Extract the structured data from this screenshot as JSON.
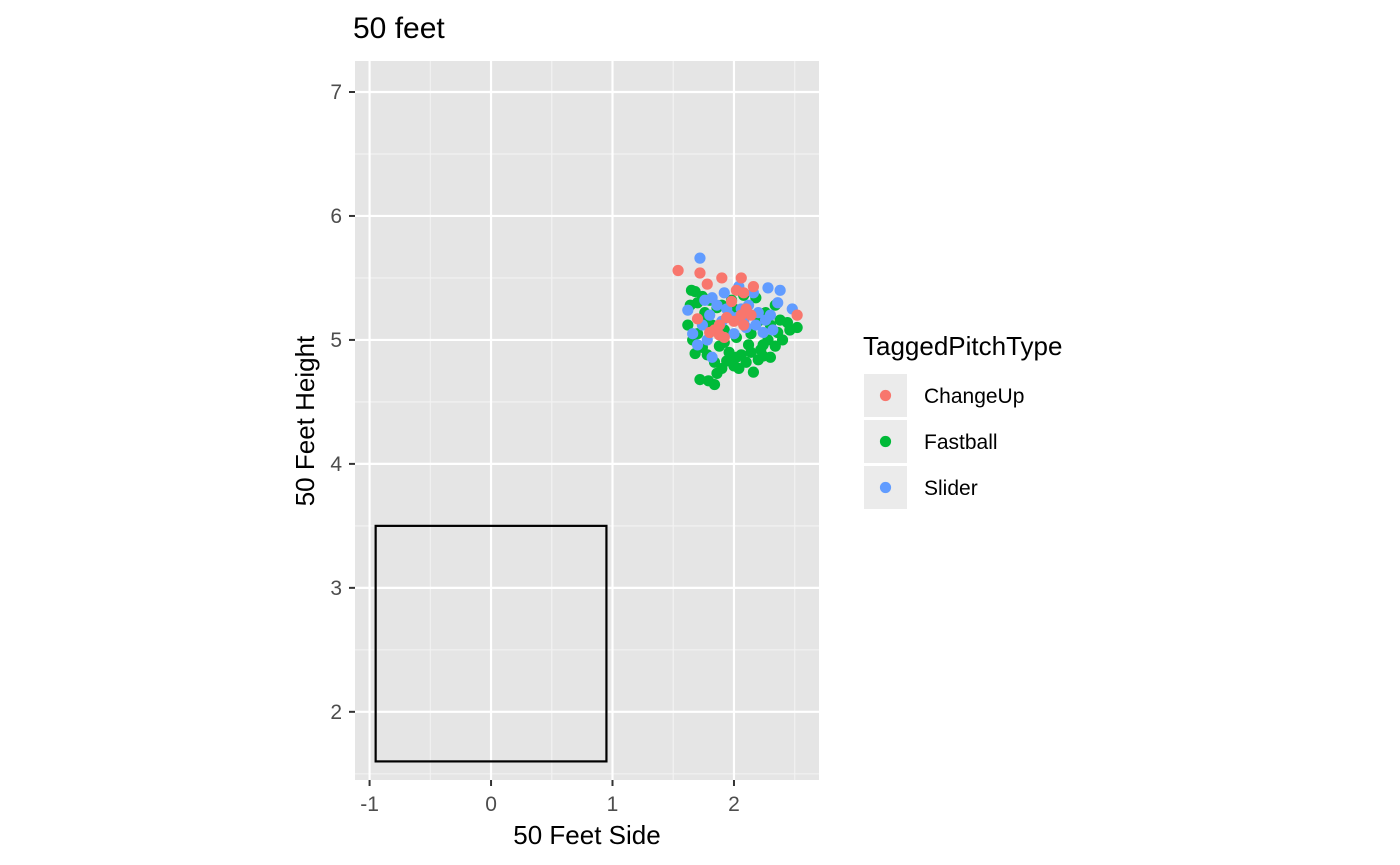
{
  "chart_data": {
    "type": "scatter",
    "title": "50 feet",
    "xlabel": "50 Feet Side",
    "ylabel": "50 Feet Height",
    "xlim": [
      -1.12,
      2.7
    ],
    "ylim": [
      1.45,
      7.25
    ],
    "x_ticks": [
      -1,
      0,
      1,
      2
    ],
    "x_tick_labels": [
      "-1",
      "0",
      "1",
      "2"
    ],
    "y_ticks": [
      2,
      3,
      4,
      5,
      6,
      7
    ],
    "y_tick_labels": [
      "2",
      "3",
      "4",
      "5",
      "6",
      "7"
    ],
    "grid": true,
    "legend": {
      "title": "TaggedPitchType",
      "position": "right"
    },
    "strike_zone": {
      "x": [
        -0.95,
        0.95
      ],
      "y": [
        1.6,
        3.5
      ],
      "color": "#000000"
    },
    "series": [
      {
        "name": "Fastball",
        "color": "#00BA38",
        "points": [
          [
            1.65,
            5.4
          ],
          [
            1.68,
            5.39
          ],
          [
            1.64,
            5.28
          ],
          [
            1.62,
            5.12
          ],
          [
            1.66,
            5.0
          ],
          [
            1.68,
            4.89
          ],
          [
            1.74,
            4.94
          ],
          [
            1.78,
            4.88
          ],
          [
            1.72,
            4.68
          ],
          [
            1.79,
            4.67
          ],
          [
            1.84,
            4.64
          ],
          [
            1.86,
            4.73
          ],
          [
            1.9,
            4.77
          ],
          [
            1.94,
            4.83
          ],
          [
            2.0,
            4.79
          ],
          [
            2.04,
            4.77
          ],
          [
            2.1,
            4.82
          ],
          [
            2.16,
            4.74
          ],
          [
            2.2,
            4.84
          ],
          [
            2.24,
            4.87
          ],
          [
            2.3,
            4.86
          ],
          [
            2.34,
            4.95
          ],
          [
            2.28,
            5.0
          ],
          [
            2.4,
            5.0
          ],
          [
            2.44,
            5.14
          ],
          [
            2.52,
            5.1
          ],
          [
            2.46,
            5.08
          ],
          [
            2.36,
            5.06
          ],
          [
            2.3,
            5.12
          ],
          [
            2.2,
            5.15
          ],
          [
            2.1,
            5.2
          ],
          [
            2.0,
            5.25
          ],
          [
            1.9,
            5.28
          ],
          [
            1.8,
            5.32
          ],
          [
            1.74,
            5.35
          ],
          [
            1.82,
            5.12
          ],
          [
            1.92,
            5.08
          ],
          [
            2.02,
            5.02
          ],
          [
            2.12,
            4.96
          ],
          [
            2.22,
            4.92
          ],
          [
            1.7,
            5.05
          ],
          [
            1.78,
            5.18
          ],
          [
            1.88,
            4.95
          ],
          [
            1.96,
            4.9
          ],
          [
            2.06,
            4.88
          ],
          [
            2.14,
            5.05
          ],
          [
            2.26,
            5.22
          ],
          [
            2.34,
            5.28
          ],
          [
            2.18,
            5.34
          ],
          [
            2.08,
            5.36
          ],
          [
            1.98,
            5.32
          ],
          [
            1.86,
            5.26
          ],
          [
            1.76,
            5.22
          ],
          [
            1.7,
            5.3
          ],
          [
            1.84,
            4.82
          ],
          [
            2.02,
            4.86
          ],
          [
            2.24,
            4.96
          ],
          [
            2.38,
            5.16
          ],
          [
            2.14,
            4.9
          ],
          [
            1.92,
            4.98
          ]
        ]
      },
      {
        "name": "Slider",
        "color": "#619CFF",
        "points": [
          [
            1.72,
            5.66
          ],
          [
            1.62,
            5.24
          ],
          [
            1.66,
            5.05
          ],
          [
            1.7,
            4.96
          ],
          [
            1.78,
            5.0
          ],
          [
            1.82,
            4.86
          ],
          [
            1.86,
            5.07
          ],
          [
            1.9,
            5.15
          ],
          [
            1.96,
            5.2
          ],
          [
            2.02,
            5.18
          ],
          [
            2.06,
            5.25
          ],
          [
            2.12,
            5.28
          ],
          [
            2.2,
            5.22
          ],
          [
            2.26,
            5.16
          ],
          [
            2.3,
            5.2
          ],
          [
            2.36,
            5.3
          ],
          [
            2.38,
            5.4
          ],
          [
            2.28,
            5.42
          ],
          [
            2.48,
            5.25
          ],
          [
            2.16,
            5.38
          ],
          [
            2.04,
            5.43
          ],
          [
            1.92,
            5.38
          ],
          [
            1.82,
            5.34
          ],
          [
            1.76,
            5.32
          ],
          [
            1.8,
            5.2
          ],
          [
            1.88,
            5.12
          ],
          [
            2.0,
            5.05
          ],
          [
            2.1,
            5.1
          ],
          [
            2.24,
            5.06
          ],
          [
            2.32,
            5.08
          ],
          [
            1.94,
            5.25
          ],
          [
            2.08,
            5.15
          ],
          [
            2.18,
            5.12
          ],
          [
            1.86,
            5.28
          ],
          [
            1.74,
            5.12
          ]
        ]
      },
      {
        "name": "ChangeUp",
        "color": "#F8766D",
        "points": [
          [
            1.54,
            5.56
          ],
          [
            1.72,
            5.54
          ],
          [
            1.78,
            5.45
          ],
          [
            1.9,
            5.5
          ],
          [
            2.06,
            5.5
          ],
          [
            2.16,
            5.43
          ],
          [
            2.02,
            5.4
          ],
          [
            2.08,
            5.38
          ],
          [
            1.98,
            5.31
          ],
          [
            2.1,
            5.25
          ],
          [
            2.06,
            5.2
          ],
          [
            2.0,
            5.15
          ],
          [
            1.94,
            5.18
          ],
          [
            1.88,
            5.12
          ],
          [
            1.84,
            5.08
          ],
          [
            1.8,
            5.06
          ],
          [
            1.88,
            5.04
          ],
          [
            1.92,
            5.02
          ],
          [
            2.08,
            5.12
          ],
          [
            2.14,
            5.2
          ],
          [
            2.52,
            5.2
          ],
          [
            1.7,
            5.17
          ]
        ]
      }
    ]
  }
}
